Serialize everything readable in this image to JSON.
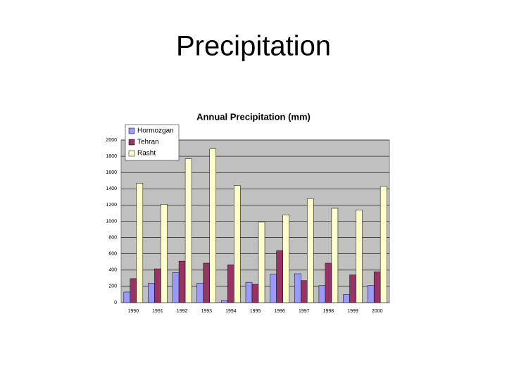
{
  "slide_title": "Precipitation",
  "chart_data": {
    "type": "bar",
    "title": "Annual Precipitation (mm)",
    "categories": [
      "1990",
      "1991",
      "1992",
      "1993",
      "1994",
      "1995",
      "1996",
      "1997",
      "1998",
      "1999",
      "2000"
    ],
    "series": [
      {
        "name": "Hormozgan",
        "color": "#9999ff",
        "values": [
          130,
          240,
          370,
          240,
          25,
          250,
          350,
          355,
          210,
          100,
          210
        ]
      },
      {
        "name": "Tehran",
        "color": "#993366",
        "values": [
          295,
          415,
          510,
          485,
          465,
          225,
          640,
          270,
          485,
          340,
          380
        ]
      },
      {
        "name": "Rasht",
        "color": "#ffffcc",
        "values": [
          1470,
          1210,
          1770,
          1890,
          1440,
          990,
          1080,
          1280,
          1160,
          1140,
          1430
        ]
      }
    ],
    "ylim": [
      0,
      2000
    ],
    "yticks": [
      0,
      200,
      400,
      600,
      800,
      1000,
      1200,
      1400,
      1600,
      1800,
      2000
    ],
    "grid": true,
    "legend": "top-left"
  }
}
